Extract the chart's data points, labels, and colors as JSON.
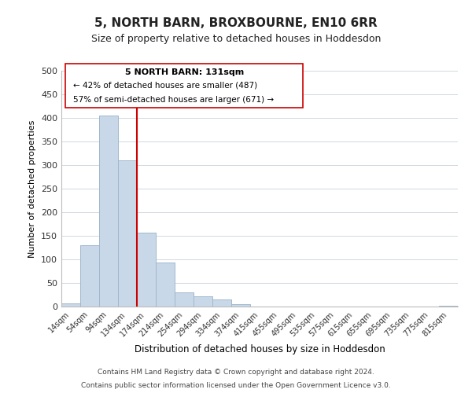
{
  "title": "5, NORTH BARN, BROXBOURNE, EN10 6RR",
  "subtitle": "Size of property relative to detached houses in Hoddesdon",
  "bar_values": [
    6,
    130,
    405,
    310,
    157,
    93,
    30,
    22,
    15,
    5,
    0,
    0,
    0,
    0,
    0,
    0,
    0,
    0,
    0,
    0,
    1
  ],
  "bar_labels": [
    "14sqm",
    "54sqm",
    "94sqm",
    "134sqm",
    "174sqm",
    "214sqm",
    "254sqm",
    "294sqm",
    "334sqm",
    "374sqm",
    "415sqm",
    "455sqm",
    "495sqm",
    "535sqm",
    "575sqm",
    "615sqm",
    "655sqm",
    "695sqm",
    "735sqm",
    "775sqm",
    "815sqm"
  ],
  "bar_color": "#c8d8e8",
  "bar_edge_color": "#a0b8cc",
  "ylabel": "Number of detached properties",
  "xlabel": "Distribution of detached houses by size in Hoddesdon",
  "ylim": [
    0,
    500
  ],
  "yticks": [
    0,
    50,
    100,
    150,
    200,
    250,
    300,
    350,
    400,
    450,
    500
  ],
  "vline_x": 3,
  "vline_color": "#cc0000",
  "annotation_title": "5 NORTH BARN: 131sqm",
  "annotation_line1": "← 42% of detached houses are smaller (487)",
  "annotation_line2": "57% of semi-detached houses are larger (671) →",
  "footer_line1": "Contains HM Land Registry data © Crown copyright and database right 2024.",
  "footer_line2": "Contains public sector information licensed under the Open Government Licence v3.0.",
  "background_color": "#ffffff",
  "grid_color": "#d0d8e0"
}
